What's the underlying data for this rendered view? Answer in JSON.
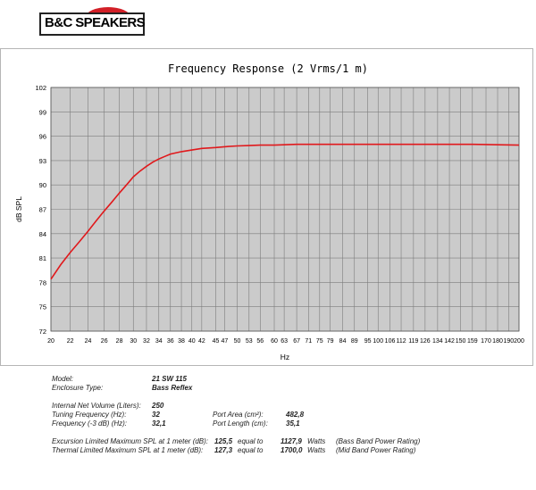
{
  "logo": {
    "text": "B&C SPEAKERS"
  },
  "chart_data": {
    "type": "line",
    "title": "Frequency Response (2 Vrms/1 m)",
    "xlabel": "Hz",
    "ylabel": "dB SPL",
    "ylim": [
      72,
      102
    ],
    "yticks": [
      72,
      75,
      78,
      81,
      84,
      87,
      90,
      93,
      96,
      99,
      102
    ],
    "xticks": [
      20,
      22,
      24,
      26,
      28,
      30,
      32,
      34,
      36,
      38,
      40,
      42,
      45,
      47,
      50,
      53,
      56,
      60,
      63,
      67,
      71,
      75,
      79,
      84,
      89,
      95,
      100,
      106,
      112,
      119,
      126,
      134,
      142,
      150,
      159,
      170,
      180,
      190,
      200
    ],
    "grid": true,
    "legend": "none",
    "line_color": "#e0191c",
    "series": [
      {
        "x": [
          20,
          21,
          22,
          23,
          24,
          25,
          26,
          27,
          28,
          29,
          30,
          31,
          32,
          33,
          34,
          35,
          36,
          38,
          40,
          42,
          45,
          47,
          50,
          53,
          56,
          60,
          63,
          67,
          71,
          75,
          79,
          84,
          89,
          95,
          100,
          112,
          126,
          142,
          159,
          180,
          200
        ],
        "values": [
          78.4,
          80.2,
          81.7,
          83.0,
          84.3,
          85.6,
          86.8,
          87.9,
          89.0,
          90.0,
          91.0,
          91.7,
          92.3,
          92.8,
          93.2,
          93.5,
          93.8,
          94.1,
          94.3,
          94.5,
          94.6,
          94.7,
          94.8,
          94.85,
          94.9,
          94.9,
          94.95,
          95.0,
          95.0,
          95.0,
          95.0,
          95.0,
          95.0,
          95.0,
          95.0,
          95.0,
          95.0,
          95.0,
          95.0,
          94.95,
          94.9
        ]
      }
    ]
  },
  "specs": {
    "model_label": "Model:",
    "model_value": "21 SW 115",
    "enclosure_label": "Enclosure Type:",
    "enclosure_value": "Bass Reflex",
    "volume_label": "Internal  Net Volume (Liters):",
    "volume_value": "250",
    "tuning_label": "Tuning Frequency (Hz):",
    "tuning_value": "32",
    "f3_label": "Frequency (-3 dB) (Hz):",
    "f3_value": "32,1",
    "port_area_label": "Port Area (cm²):",
    "port_area_value": "482,8",
    "port_length_label": "Port Length (cm):",
    "port_length_value": "35,1",
    "exc_label": "Excursion Limited Maximum SPL at 1 meter (dB):",
    "exc_value": "125,5",
    "exc_equal": "equal to",
    "exc_watts_value": "1127,9",
    "exc_watts": "Watts",
    "exc_note": "(Bass Band Power Rating)",
    "th_label": "Thermal Limited Maximum SPL at 1 meter (dB):",
    "th_value": "127,3",
    "th_equal": "equal to",
    "th_watts_value": "1700,0",
    "th_watts": "Watts",
    "th_note": "(Mid Band Power Rating)"
  }
}
